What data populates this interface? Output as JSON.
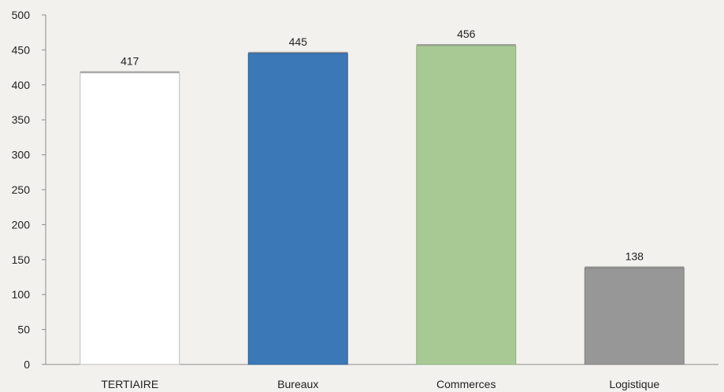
{
  "chart_data": {
    "type": "bar",
    "categories": [
      "TERTIAIRE",
      "Bureaux",
      "Commerces",
      "Logistique"
    ],
    "values": [
      417,
      445,
      456,
      138
    ],
    "data_labels": [
      "417",
      "445",
      "456",
      "138"
    ],
    "colors": [
      "#ffffff",
      "#3b78b8",
      "#a9c994",
      "#979797"
    ],
    "outline_colors": [
      "#bfbfbf",
      "#2f5f94",
      "#8fad7c",
      "#7f7f7f"
    ],
    "ylim": [
      0,
      500
    ],
    "yticks": [
      0,
      50,
      100,
      150,
      200,
      250,
      300,
      350,
      400,
      450,
      500
    ],
    "ytick_labels": [
      "0",
      "50",
      "100",
      "150",
      "200",
      "250",
      "300",
      "350",
      "400",
      "450",
      "500"
    ],
    "grid": false,
    "legend": "none",
    "title": "",
    "xlabel": "",
    "ylabel": ""
  }
}
